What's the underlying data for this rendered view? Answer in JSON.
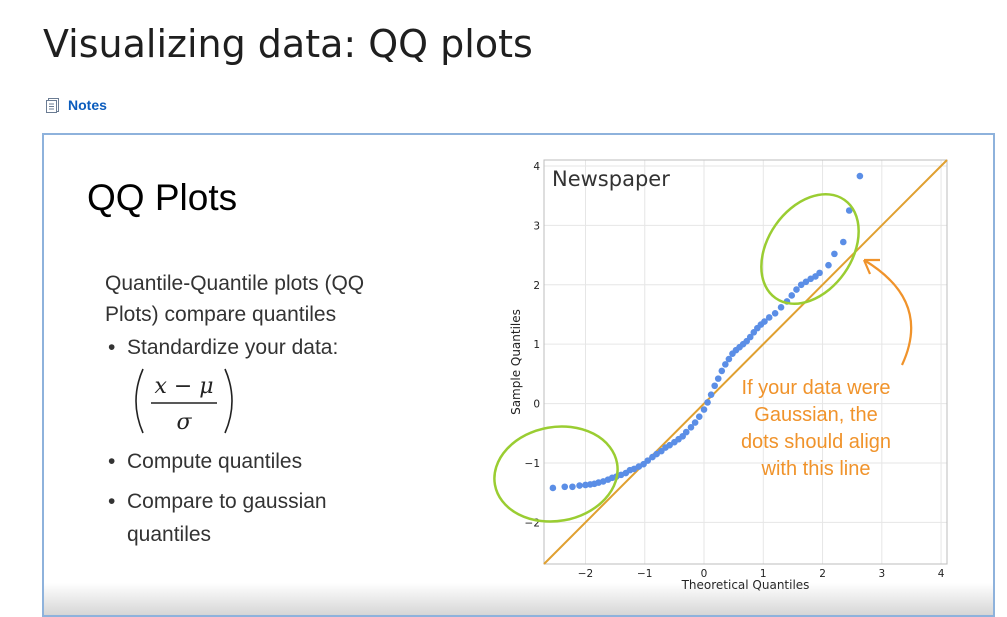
{
  "page": {
    "title": "Visualizing data: QQ plots",
    "notes_label": "Notes"
  },
  "slide": {
    "title": "QQ Plots",
    "intro_line1": "Quantile-Quantile plots (QQ",
    "intro_line2": "Plots) compare quantiles",
    "bullets": [
      {
        "dot": "•",
        "line1": "Standardize your data:",
        "line2": ""
      },
      {
        "dot": "•",
        "line1": "Compute quantiles",
        "line2": ""
      },
      {
        "dot": "•",
        "line1": "Compare to gaussian",
        "line2": "quantiles"
      }
    ],
    "formula": {
      "numerator": "x − μ",
      "denominator": "σ"
    },
    "annotation_lines": [
      "If your data were",
      "Gaussian, the",
      "dots should align",
      "with this line"
    ]
  },
  "chart_data": {
    "type": "scatter",
    "title": "Newspaper",
    "xlabel": "Theoretical Quantiles",
    "ylabel": "Sample Quantiles",
    "xlim": [
      -2.7,
      4.1
    ],
    "ylim": [
      -2.7,
      4.1
    ],
    "x_ticks": [
      "−2",
      "−1",
      "0",
      "1",
      "2",
      "3",
      "4"
    ],
    "x_tick_values": [
      -2,
      -1,
      0,
      1,
      2,
      3,
      4
    ],
    "y_ticks": [
      "−2",
      "−1",
      "0",
      "1",
      "2",
      "3",
      "4"
    ],
    "y_tick_values": [
      -2,
      -1,
      0,
      1,
      2,
      3,
      4
    ],
    "grid": true,
    "reference_line": {
      "slope": 1,
      "intercept": 0
    },
    "series": [
      {
        "color": "#5b8ee6",
        "points": [
          [
            -2.55,
            -1.42
          ],
          [
            -2.35,
            -1.4
          ],
          [
            -2.22,
            -1.4
          ],
          [
            -2.1,
            -1.38
          ],
          [
            -2.0,
            -1.37
          ],
          [
            -1.92,
            -1.36
          ],
          [
            -1.85,
            -1.35
          ],
          [
            -1.78,
            -1.33
          ],
          [
            -1.7,
            -1.31
          ],
          [
            -1.62,
            -1.28
          ],
          [
            -1.55,
            -1.25
          ],
          [
            -1.48,
            -1.23
          ],
          [
            -1.4,
            -1.2
          ],
          [
            -1.32,
            -1.17
          ],
          [
            -1.25,
            -1.12
          ],
          [
            -1.18,
            -1.1
          ],
          [
            -1.1,
            -1.06
          ],
          [
            -1.02,
            -1.02
          ],
          [
            -0.95,
            -0.96
          ],
          [
            -0.87,
            -0.9
          ],
          [
            -0.8,
            -0.85
          ],
          [
            -0.72,
            -0.8
          ],
          [
            -0.65,
            -0.74
          ],
          [
            -0.58,
            -0.7
          ],
          [
            -0.5,
            -0.65
          ],
          [
            -0.43,
            -0.6
          ],
          [
            -0.36,
            -0.55
          ],
          [
            -0.3,
            -0.48
          ],
          [
            -0.22,
            -0.4
          ],
          [
            -0.15,
            -0.32
          ],
          [
            -0.08,
            -0.22
          ],
          [
            0.0,
            -0.1
          ],
          [
            0.06,
            0.02
          ],
          [
            0.12,
            0.15
          ],
          [
            0.18,
            0.3
          ],
          [
            0.24,
            0.42
          ],
          [
            0.3,
            0.55
          ],
          [
            0.36,
            0.66
          ],
          [
            0.42,
            0.75
          ],
          [
            0.48,
            0.84
          ],
          [
            0.54,
            0.9
          ],
          [
            0.6,
            0.95
          ],
          [
            0.66,
            1.0
          ],
          [
            0.72,
            1.05
          ],
          [
            0.78,
            1.12
          ],
          [
            0.84,
            1.2
          ],
          [
            0.9,
            1.27
          ],
          [
            0.96,
            1.33
          ],
          [
            1.02,
            1.38
          ],
          [
            1.1,
            1.45
          ],
          [
            1.2,
            1.52
          ],
          [
            1.3,
            1.62
          ],
          [
            1.4,
            1.72
          ],
          [
            1.48,
            1.82
          ],
          [
            1.56,
            1.92
          ],
          [
            1.64,
            2.0
          ],
          [
            1.72,
            2.05
          ],
          [
            1.8,
            2.1
          ],
          [
            1.88,
            2.14
          ],
          [
            1.95,
            2.2
          ],
          [
            2.1,
            2.33
          ],
          [
            2.2,
            2.52
          ],
          [
            2.35,
            2.72
          ],
          [
            2.45,
            3.25
          ],
          [
            2.63,
            3.83
          ]
        ]
      }
    ]
  }
}
